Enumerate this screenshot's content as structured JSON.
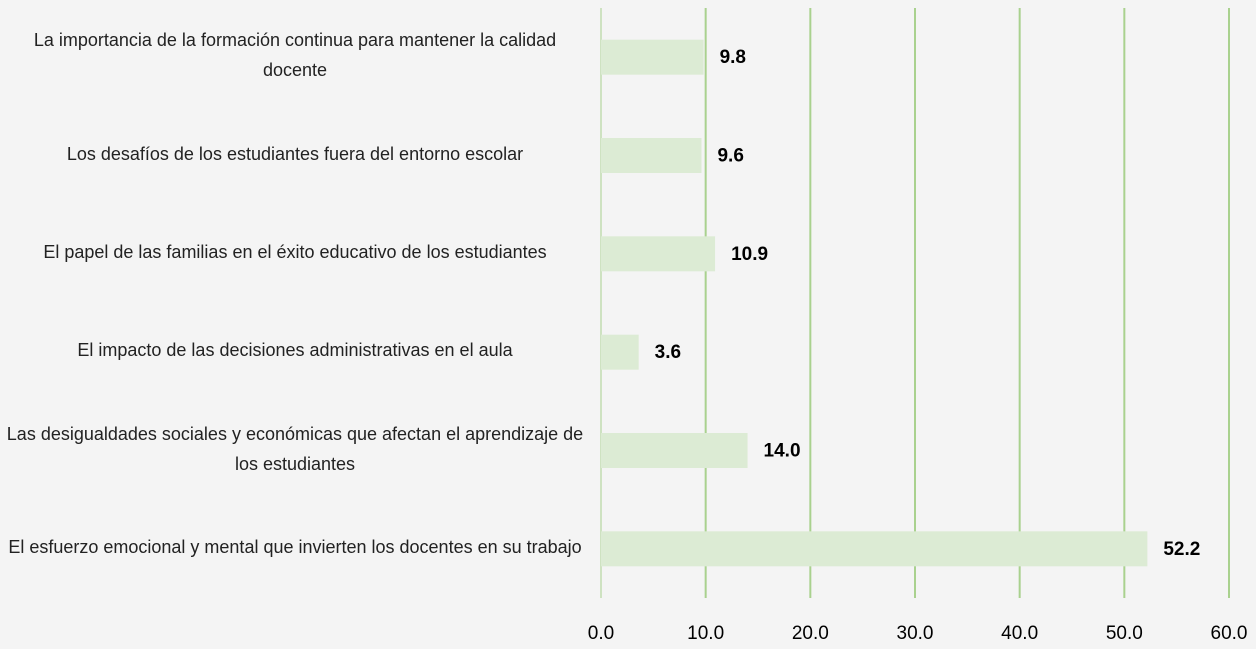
{
  "chart_data": {
    "type": "bar",
    "orientation": "horizontal",
    "categories": [
      "La importancia de la formación continua para mantener la calidad docente",
      "Los desafíos de los estudiantes fuera del entorno escolar",
      "El papel de las familias en el éxito educativo de los estudiantes",
      "El impacto de las decisiones administrativas en el aula",
      "Las desigualdades sociales y económicas que afectan el aprendizaje de los estudiantes",
      "El esfuerzo emocional y mental que invierten los docentes en su trabajo"
    ],
    "values": [
      9.8,
      9.6,
      10.9,
      3.6,
      14.0,
      52.2
    ],
    "value_labels": [
      "9.8",
      "9.6",
      "10.9",
      "3.6",
      "14.0",
      "52.2"
    ],
    "color": "#dcebd4",
    "xlim": [
      0,
      60
    ],
    "xticks": [
      {
        "value": 0,
        "label": "0.0"
      },
      {
        "value": 10,
        "label": "10.0"
      },
      {
        "value": 20,
        "label": "20.0"
      },
      {
        "value": 30,
        "label": "30.0"
      },
      {
        "value": 40,
        "label": "40.0"
      },
      {
        "value": 50,
        "label": "50.0"
      },
      {
        "value": 60,
        "label": "60.0"
      }
    ],
    "grid": true,
    "grid_color": "#a9d18e"
  }
}
